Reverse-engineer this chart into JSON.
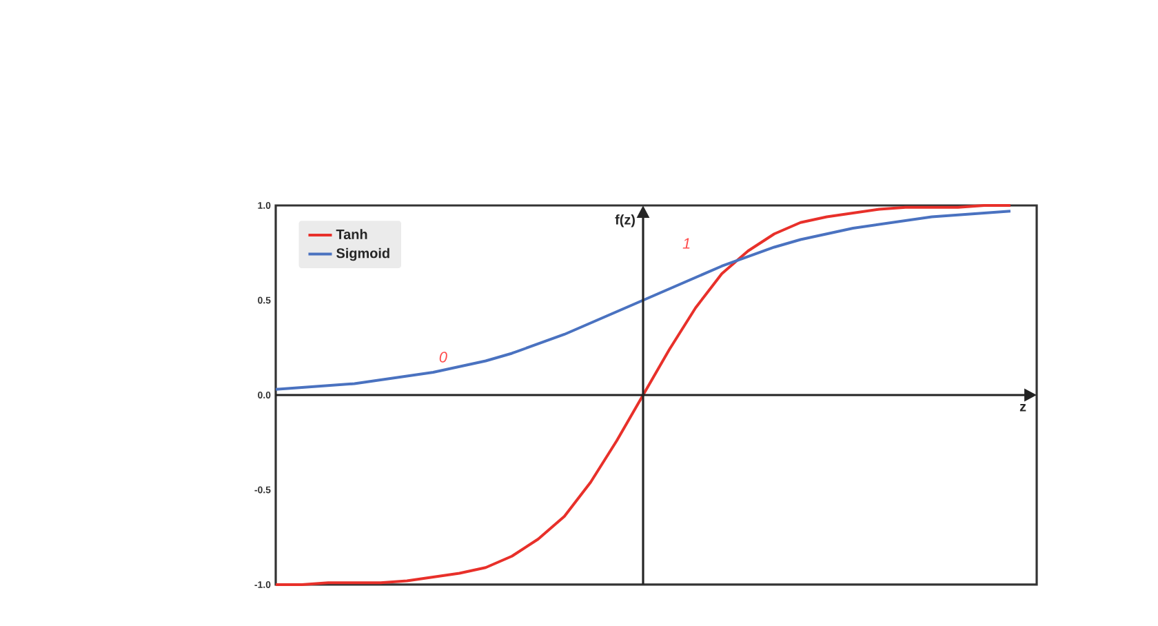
{
  "chart_data": {
    "type": "line",
    "xlabel": "z",
    "ylabel": "f(z)",
    "categories": [
      null,
      null,
      null,
      null,
      null,
      null,
      null,
      null,
      null,
      null,
      null,
      null,
      null,
      null,
      null,
      null,
      null,
      null,
      null,
      null,
      null,
      null,
      null,
      null,
      null,
      null,
      null,
      null,
      null
    ],
    "series": [
      {
        "name": "Tanh",
        "color": "#e8302a",
        "values": [
          -1.0,
          -1.0,
          -0.99,
          -0.99,
          -0.99,
          -0.98,
          -0.96,
          -0.94,
          -0.91,
          -0.85,
          -0.76,
          -0.64,
          -0.46,
          -0.24,
          0,
          0.24,
          0.46,
          0.64,
          0.76,
          0.85,
          0.91,
          0.94,
          0.96,
          0.98,
          0.99,
          0.99,
          0.99,
          1.0,
          1.0
        ]
      },
      {
        "name": "Sigmoid",
        "color": "#4a72c0",
        "values": [
          0.03,
          0.04,
          0.05,
          0.06,
          0.08,
          0.1,
          0.12,
          0.15,
          0.18,
          0.22,
          0.27,
          0.32,
          0.38,
          0.44,
          0.5,
          0.56,
          0.62,
          0.68,
          0.73,
          0.78,
          0.82,
          0.85,
          0.88,
          0.9,
          0.92,
          0.94,
          0.95,
          0.96,
          0.97
        ]
      }
    ],
    "ylim": [
      -1.0,
      1.0
    ],
    "yticks": [
      {
        "value": 1,
        "label": "1.0"
      },
      {
        "value": 0.5,
        "label": "0.5"
      },
      {
        "value": 0,
        "label": "0.0"
      },
      {
        "value": -0.5,
        "label": "-0.5"
      },
      {
        "value": -1,
        "label": "-1.0"
      }
    ],
    "tick_labels": "y",
    "ref_lines": [
      {
        "axis": "y",
        "value": 0
      }
    ],
    "legend": "top left",
    "marker": "none",
    "line_style": "solid",
    "annotations": [
      "0",
      "1"
    ]
  }
}
